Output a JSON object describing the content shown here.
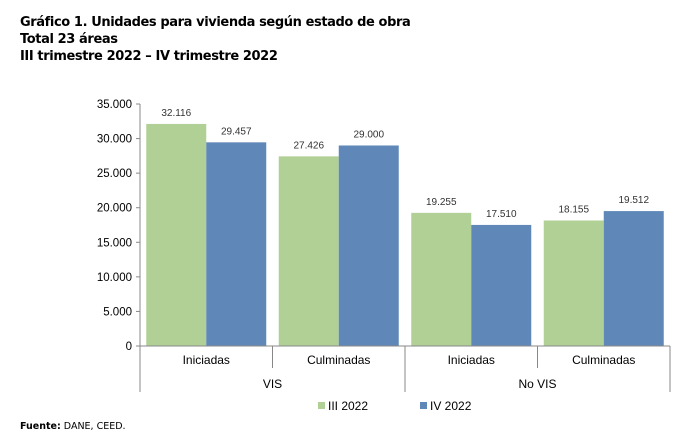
{
  "chart_data": {
    "type": "bar",
    "title_lines": [
      "Gráfico 1. Unidades para vivienda según estado de obra",
      "Total 23 áreas",
      "III trimestre 2022 – IV trimestre 2022"
    ],
    "categories": [
      "Iniciadas",
      "Culminadas",
      "Iniciadas",
      "Culminadas"
    ],
    "groups": [
      {
        "label": "VIS",
        "span": 2
      },
      {
        "label": "No VIS",
        "span": 2
      }
    ],
    "series": [
      {
        "name": "III 2022",
        "color": "#b0d095",
        "values": [
          32116,
          27426,
          19255,
          18155
        ],
        "labels": [
          "32.116",
          "27.426",
          "19.255",
          "18.155"
        ]
      },
      {
        "name": "IV 2022",
        "color": "#5f88b8",
        "values": [
          29457,
          29000,
          17510,
          19512
        ],
        "labels": [
          "29.457",
          "29.000",
          "17.510",
          "19.512"
        ]
      }
    ],
    "yticks": [
      "0",
      "5.000",
      "10.000",
      "15.000",
      "20.000",
      "25.000",
      "30.000",
      "35.000"
    ],
    "ylim": [
      0,
      35000
    ],
    "grid": false,
    "legend": "bottom"
  },
  "source": {
    "label": "Fuente:",
    "text": " DANE, CEED."
  }
}
